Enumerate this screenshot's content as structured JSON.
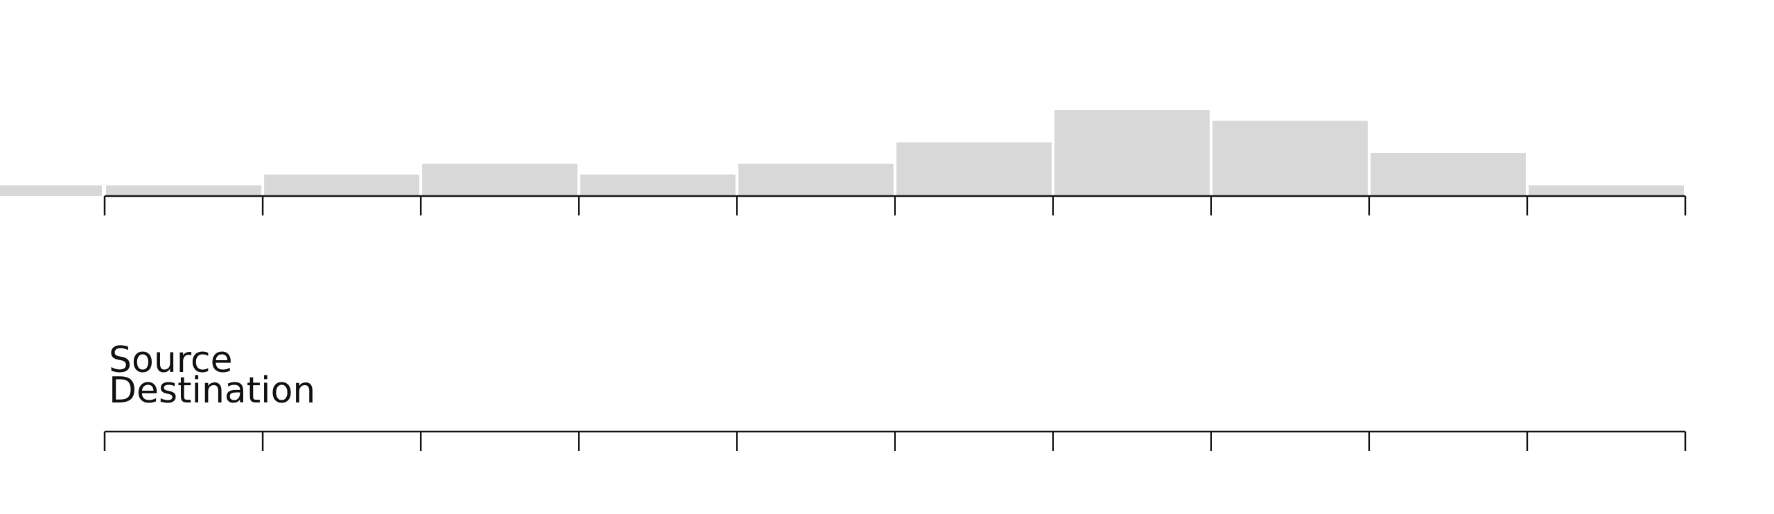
{
  "chart_data": [
    {
      "type": "bar",
      "title": "",
      "xlabel": "",
      "ylabel": "",
      "axis_bins": 10,
      "values_relative": [
        1,
        2,
        3,
        2,
        3,
        5,
        8,
        7,
        4,
        1
      ],
      "left_overflow_value": 1,
      "colors": {
        "bar": "#d8d8d8",
        "axis": "#111111"
      },
      "grid": false
    },
    {
      "type": "bar",
      "title": "",
      "xlabel": "",
      "ylabel": "",
      "axis_bins": 10,
      "values_relative": [],
      "colors": {
        "axis": "#111111"
      },
      "grid": false
    }
  ],
  "legend": {
    "items": [
      "Source",
      "Destination"
    ],
    "placement": "left"
  }
}
